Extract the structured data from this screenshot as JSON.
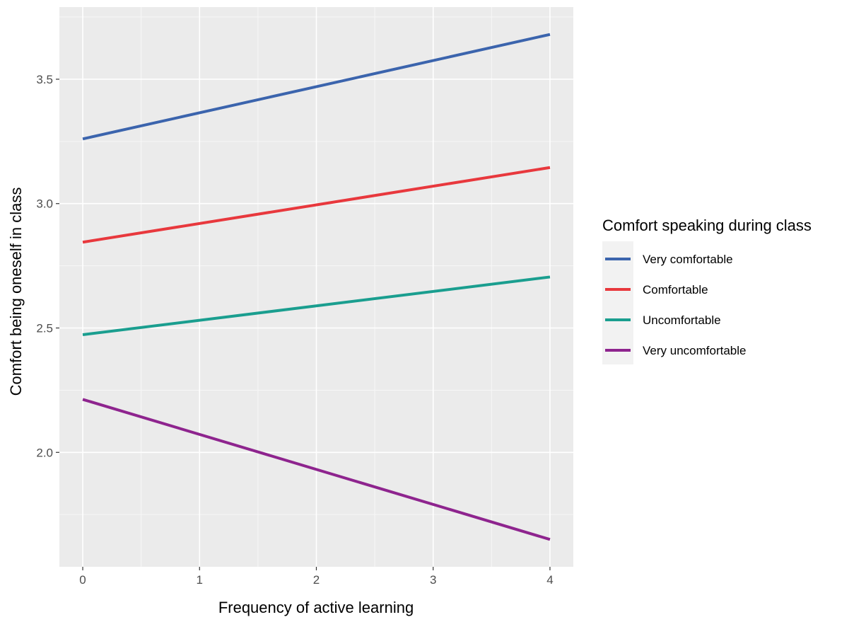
{
  "chart_data": {
    "type": "line",
    "xlabel": "Frequency of active learning",
    "ylabel": "Comfort being oneself in class",
    "xlim": [
      -0.2,
      4.2
    ],
    "ylim": [
      1.54,
      3.79
    ],
    "x_ticks": [
      0,
      1,
      2,
      3,
      4
    ],
    "x_tick_labels": [
      "0",
      "1",
      "2",
      "3",
      "4"
    ],
    "y_ticks": [
      2.0,
      2.5,
      3.0,
      3.5
    ],
    "y_tick_labels": [
      "2.0",
      "2.5",
      "3.0",
      "3.5"
    ],
    "grid": true,
    "legend": {
      "title": "Comfort speaking during class",
      "position": "right"
    },
    "series": [
      {
        "name": "Very comfortable",
        "color": "#3B64AD",
        "x": [
          0,
          4
        ],
        "y": [
          3.26,
          3.68
        ]
      },
      {
        "name": "Comfortable",
        "color": "#E8383D",
        "x": [
          0,
          4
        ],
        "y": [
          2.845,
          3.145
        ]
      },
      {
        "name": "Uncomfortable",
        "color": "#1A9E8F",
        "x": [
          0,
          4
        ],
        "y": [
          2.473,
          2.705
        ]
      },
      {
        "name": "Very uncomfortable",
        "color": "#8E248E",
        "x": [
          0,
          4
        ],
        "y": [
          2.213,
          1.65
        ]
      }
    ]
  }
}
